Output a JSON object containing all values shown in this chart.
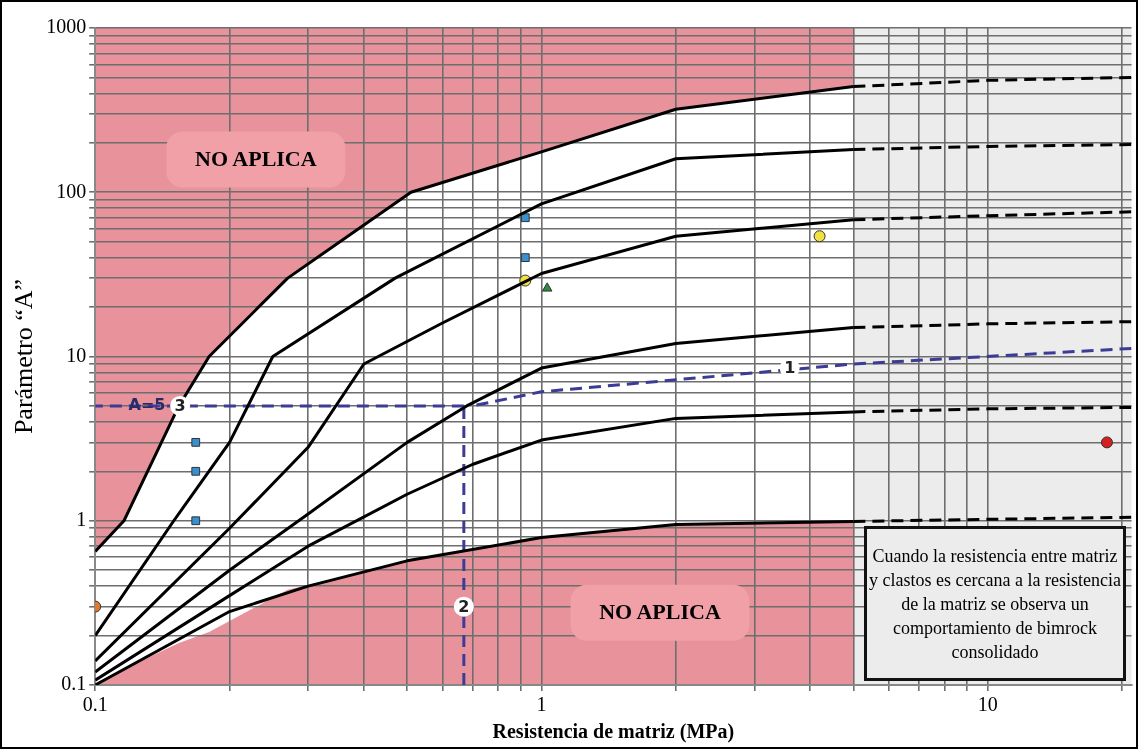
{
  "chart_data": {
    "type": "line",
    "xlabel": "Resistencia de matriz (MPa)",
    "ylabel": "Parámetro “A”",
    "xlim": [
      0.1,
      21
    ],
    "ylim": [
      0.1,
      1000
    ],
    "xticks": [
      0.1,
      {
        "value": 0.2,
        "label": null
      },
      {
        "value": 0.3,
        "label": null
      },
      {
        "value": 0.4,
        "label": null
      },
      {
        "value": 0.5,
        "label": null
      },
      {
        "value": 0.6,
        "label": null
      },
      {
        "value": 0.7,
        "label": null
      },
      {
        "value": 0.8,
        "label": null
      },
      {
        "value": 0.9,
        "label": null
      },
      1,
      {
        "value": 2,
        "label": null
      },
      {
        "value": 3,
        "label": null
      },
      {
        "value": 4,
        "label": null
      },
      {
        "value": 5,
        "label": null
      },
      {
        "value": 6,
        "label": null
      },
      {
        "value": 7,
        "label": null
      },
      {
        "value": 8,
        "label": null
      },
      {
        "value": 9,
        "label": null
      },
      10,
      {
        "value": 20,
        "label": null
      }
    ],
    "yticks": [
      0.1,
      {
        "value": 0.2,
        "label": null
      },
      {
        "value": 0.3,
        "label": null
      },
      {
        "value": 0.4,
        "label": null
      },
      {
        "value": 0.5,
        "label": null
      },
      {
        "value": 0.6,
        "label": null
      },
      {
        "value": 0.7,
        "label": null
      },
      {
        "value": 0.8,
        "label": null
      },
      {
        "value": 0.9,
        "label": null
      },
      1,
      {
        "value": 2,
        "label": null
      },
      {
        "value": 3,
        "label": null
      },
      {
        "value": 4,
        "label": null
      },
      {
        "value": 5,
        "label": null
      },
      {
        "value": 6,
        "label": null
      },
      {
        "value": 7,
        "label": null
      },
      {
        "value": 8,
        "label": null
      },
      {
        "value": 9,
        "label": null
      },
      10,
      {
        "value": 20,
        "label": null
      },
      {
        "value": 30,
        "label": null
      },
      {
        "value": 40,
        "label": null
      },
      {
        "value": 50,
        "label": null
      },
      {
        "value": 60,
        "label": null
      },
      {
        "value": 70,
        "label": null
      },
      {
        "value": 80,
        "label": null
      },
      {
        "value": 90,
        "label": null
      },
      100,
      {
        "value": 200,
        "label": null
      },
      {
        "value": 300,
        "label": null
      },
      {
        "value": 400,
        "label": null
      },
      {
        "value": 500,
        "label": null
      },
      {
        "value": 600,
        "label": null
      },
      {
        "value": 700,
        "label": null
      },
      {
        "value": 800,
        "label": null
      },
      {
        "value": 900,
        "label": null
      },
      1000
    ],
    "log": "xy",
    "grid": true,
    "legend": false,
    "bands": [
      {
        "axis": "x",
        "from": 0.1,
        "to": 5,
        "color": "#e8939b"
      },
      {
        "axis": "x",
        "from": 5,
        "to": 21,
        "color": "#ececec"
      }
    ],
    "series": [
      {
        "color": "#000000",
        "line_style": "solid",
        "marker": "none",
        "x": [
          0.1,
          0.116,
          0.154,
          0.18,
          0.27,
          0.51,
          1,
          2,
          5
        ],
        "values": [
          0.65,
          1,
          5,
          10,
          30,
          100,
          176,
          320,
          440
        ],
        "lower": [
          0.1,
          0.125,
          0.18,
          0.21,
          0.38,
          0.57,
          0.79,
          0.95,
          0.99
        ],
        "upper": [
          0.65,
          1,
          5,
          10,
          30,
          100,
          176,
          320,
          440
        ]
      },
      {
        "type": "line",
        "color": "#000000",
        "line_style": "solid",
        "marker": "none",
        "x": [
          0.1,
          0.15,
          0.2,
          0.25,
          0.47,
          1,
          2,
          5
        ],
        "values": [
          0.2,
          1,
          3,
          10,
          30,
          85,
          160,
          182
        ]
      },
      {
        "type": "line",
        "color": "#000000",
        "line_style": "solid",
        "marker": "none",
        "x": [
          0.1,
          0.2,
          0.3,
          0.4,
          0.6,
          1,
          2,
          5
        ],
        "values": [
          0.14,
          0.9,
          2.8,
          9,
          16,
          32,
          54,
          68
        ]
      },
      {
        "type": "line",
        "color": "#000000",
        "line_style": "solid",
        "marker": "none",
        "x": [
          0.1,
          0.2,
          0.3,
          0.5,
          0.68,
          1,
          2,
          5
        ],
        "values": [
          0.12,
          0.5,
          1.1,
          3,
          5,
          8.5,
          12,
          15
        ]
      },
      {
        "type": "line",
        "color": "#000000",
        "line_style": "solid",
        "marker": "none",
        "x": [
          0.1,
          0.2,
          0.3,
          0.5,
          0.7,
          1,
          2,
          5
        ],
        "values": [
          0.107,
          0.35,
          0.7,
          1.45,
          2.2,
          3.1,
          4.2,
          4.6
        ]
      },
      {
        "type": "line",
        "color": "#000000",
        "line_style": "solid",
        "marker": "none",
        "x": [
          0.1,
          0.2,
          0.3,
          0.5,
          1,
          2,
          5
        ],
        "values": [
          0.1,
          0.28,
          0.4,
          0.57,
          0.79,
          0.95,
          0.99
        ]
      },
      {
        "type": "line",
        "color": "#000000",
        "line_style": "dashed",
        "marker": "none",
        "x": [
          5,
          10,
          21
        ],
        "values": [
          440,
          480,
          500
        ]
      },
      {
        "type": "line",
        "color": "#000000",
        "line_style": "dashed",
        "marker": "none",
        "x": [
          5,
          10,
          21
        ],
        "values": [
          182,
          190,
          195
        ]
      },
      {
        "type": "line",
        "color": "#000000",
        "line_style": "dashed",
        "marker": "none",
        "x": [
          5,
          10,
          21
        ],
        "values": [
          68,
          72,
          76
        ]
      },
      {
        "type": "line",
        "color": "#000000",
        "line_style": "dashed",
        "marker": "none",
        "x": [
          5,
          10,
          21
        ],
        "values": [
          15,
          15.8,
          16.3
        ]
      },
      {
        "type": "line",
        "color": "#000000",
        "line_style": "dashed",
        "marker": "none",
        "x": [
          5,
          10,
          21
        ],
        "values": [
          4.6,
          4.8,
          4.9
        ]
      },
      {
        "type": "line",
        "color": "#000000",
        "line_style": "dashed",
        "marker": "none",
        "x": [
          5,
          10,
          21
        ],
        "values": [
          0.99,
          1.02,
          1.05
        ]
      },
      {
        "type": "line",
        "color": "#3c3c96",
        "line_style": "dashed",
        "marker": "none",
        "x": [
          21,
          5,
          1,
          0.7
        ],
        "values": [
          11.2,
          9,
          6.1,
          5
        ]
      },
      {
        "type": "line",
        "color": "#3c3c96",
        "line_style": "dashed",
        "marker": "none",
        "x": [
          0.67,
          0.67
        ],
        "values": [
          0.1,
          5
        ]
      },
      {
        "type": "line",
        "color": "#3c3c96",
        "line_style": "dashed",
        "marker": "none",
        "x": [
          0.67,
          0.1
        ],
        "values": [
          5,
          5
        ]
      },
      {
        "type": "scatter",
        "color": "#3a8fd0",
        "marker": "square",
        "x": [
          0.168,
          0.168,
          0.168,
          0.92,
          0.92
        ],
        "values": [
          3,
          2,
          1,
          70,
          40
        ]
      },
      {
        "type": "scatter",
        "color": "#f0e040",
        "marker": "circle",
        "x": [
          0.92,
          4.2
        ],
        "values": [
          29,
          54
        ]
      },
      {
        "type": "scatter",
        "color": "#2e8b3e",
        "marker": "triangle",
        "x": [
          1.03
        ],
        "values": [
          26
        ]
      },
      {
        "type": "scatter",
        "color": "#e07830",
        "marker": "circle",
        "x": [
          0.1
        ],
        "values": [
          0.3
        ]
      },
      {
        "type": "scatter",
        "color": "#d42020",
        "marker": "circle",
        "x": [
          18.5
        ],
        "values": [
          3
        ]
      }
    ],
    "annotations": [
      "NO APLICA",
      "NO APLICA",
      {
        "text": "1",
        "x": 3.6,
        "y": 8.5
      },
      {
        "text": "2",
        "x": 0.67,
        "y": 0.3
      },
      {
        "text": "3",
        "x": 0.155,
        "y": 5
      },
      "A=5",
      "Cuando la resistencia entre matriz y clastos es cercana a la resistencia de la matriz se observa un comportamiento de bimrock consolidado"
    ]
  }
}
